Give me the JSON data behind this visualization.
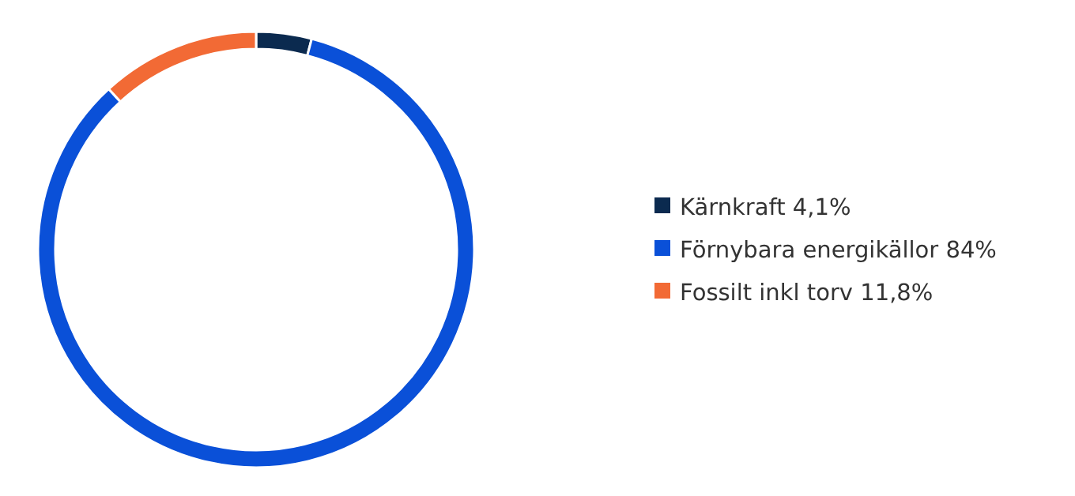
{
  "chart_data": {
    "type": "donut",
    "categories": [
      "Kärnkraft",
      "Förnybara energikällor",
      "Fossilt inkl torv"
    ],
    "values": [
      4.1,
      84,
      11.8
    ],
    "colors": [
      "#0b2a4f",
      "#0a50d8",
      "#f26a35"
    ],
    "value_labels": [
      "4,1%",
      "84%",
      "11,8%"
    ],
    "legend": "right"
  }
}
